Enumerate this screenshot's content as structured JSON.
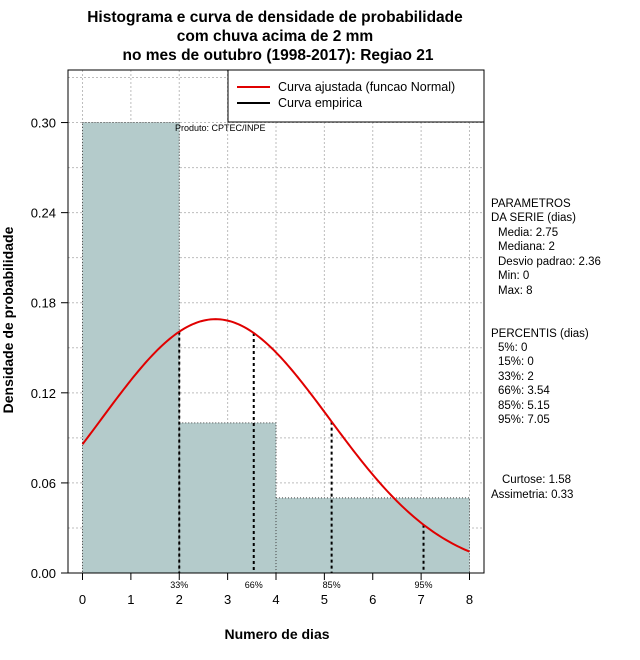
{
  "chart_data": {
    "type": "histogram",
    "title_lines": [
      "Histograma e curva de densidade de probabilidade",
      "com chuva acima de 2 mm",
      "no mes de outubro (1998-2017): Regiao 21"
    ],
    "xlabel": "Numero de dias",
    "ylabel": "Densidade de probabilidade",
    "xlim": [
      -0.3,
      8.3
    ],
    "ylim": [
      0,
      0.335
    ],
    "x_ticks": [
      "0",
      "1",
      "2",
      "3",
      "4",
      "5",
      "6",
      "7",
      "8"
    ],
    "y_ticks": [
      "0.00",
      "0.06",
      "0.12",
      "0.18",
      "0.24",
      "0.30"
    ],
    "grid": true,
    "bins": [
      {
        "from": 0,
        "to": 2,
        "density": 0.3
      },
      {
        "from": 2,
        "to": 4,
        "density": 0.1
      },
      {
        "from": 4,
        "to": 8,
        "density": 0.05
      }
    ],
    "bar_color": "#b4cbcb",
    "fitted_curve": {
      "name": "Curva ajustada (funcao Normal)",
      "color": "#e00000",
      "mean": 2.75,
      "sd": 2.36,
      "x_from": 0,
      "x_to": 8
    },
    "empirical_curve": {
      "name": "Curva empirica",
      "color": "#000000"
    },
    "percentile_markers": [
      {
        "label": "33%",
        "x": 2
      },
      {
        "label": "66%",
        "x": 3.54
      },
      {
        "label": "85%",
        "x": 5.15
      },
      {
        "label": "95%",
        "x": 7.05
      }
    ],
    "source_note": "Produto: CPTEC/INPE",
    "legend_position": "top-right"
  },
  "stats_panel": {
    "params_title": [
      "PARAMETROS",
      "DA SERIE (dias)"
    ],
    "params": [
      "Media: 2.75",
      "Mediana: 2",
      "Desvio padrao: 2.36",
      "Min: 0",
      "Max: 8"
    ],
    "percentiles_title": "PERCENTIS (dias)",
    "percentiles": [
      "5%: 0",
      "15%: 0",
      "33%: 2",
      "66%: 3.54",
      "85%: 5.15",
      "95%: 7.05"
    ],
    "shape": [
      "Curtose: 1.58",
      "Assimetria: 0.33"
    ]
  }
}
